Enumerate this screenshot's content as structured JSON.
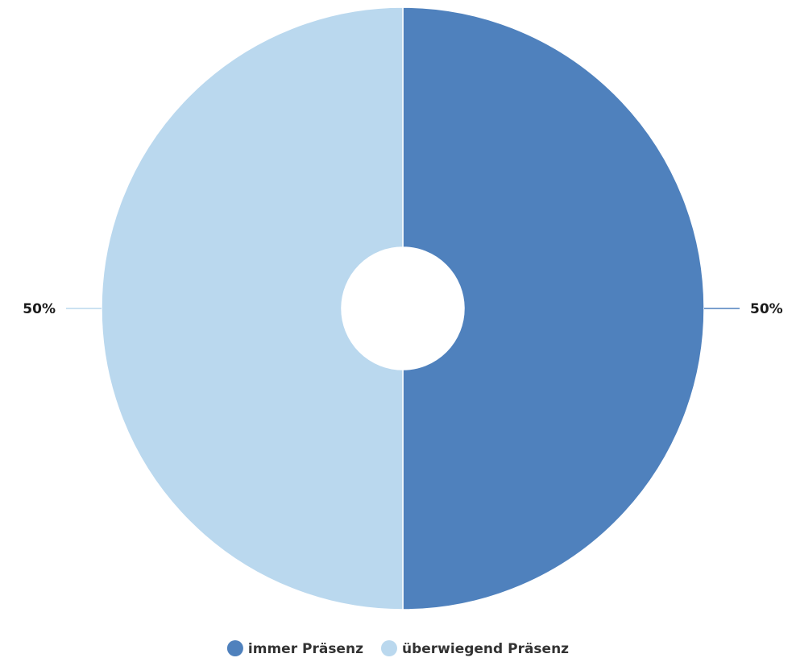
{
  "chart_data": {
    "type": "pie",
    "donut": true,
    "series": [
      {
        "name": "immer Präsenz",
        "value": 50,
        "label": "50%",
        "color": "#4f81bd"
      },
      {
        "name": "überwiegend Präsenz",
        "value": 50,
        "label": "50%",
        "color": "#bad8ee"
      }
    ],
    "legend": "bottom-center",
    "data_labels": "outside"
  }
}
